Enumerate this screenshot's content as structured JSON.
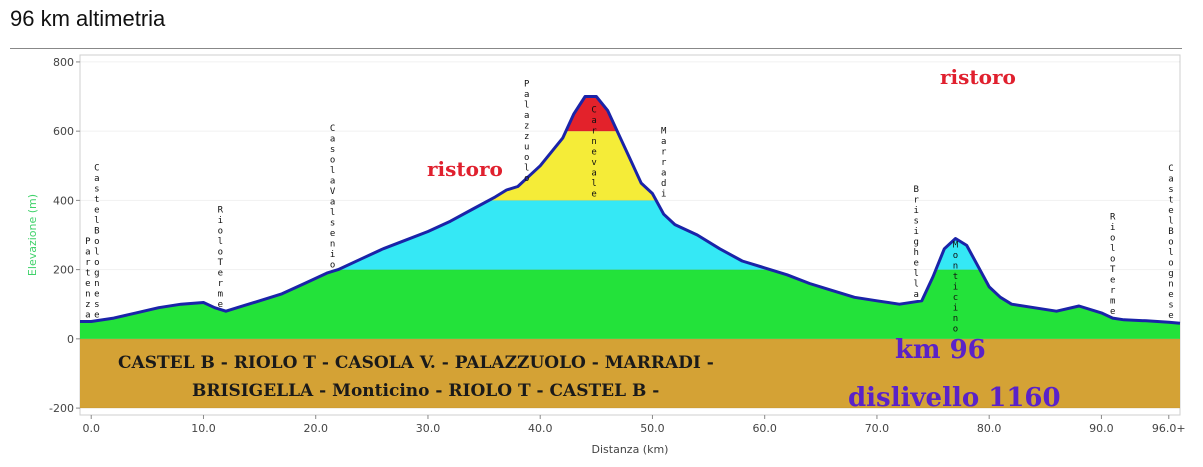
{
  "page": {
    "title": "96 km altimetria"
  },
  "chart_data": {
    "type": "area",
    "title": "",
    "xlabel": "Distanza (km)",
    "ylabel": "Elevazione (m)",
    "xlim": [
      -1,
      97
    ],
    "ylim": [
      -220,
      820
    ],
    "xticks": [
      {
        "value": 0,
        "label": "0.0"
      },
      {
        "value": 10,
        "label": "10.0"
      },
      {
        "value": 20,
        "label": "20.0"
      },
      {
        "value": 30,
        "label": "30.0"
      },
      {
        "value": 40,
        "label": "40.0"
      },
      {
        "value": 50,
        "label": "50.0"
      },
      {
        "value": 60,
        "label": "60.0"
      },
      {
        "value": 70,
        "label": "70.0"
      },
      {
        "value": 80,
        "label": "80.0"
      },
      {
        "value": 90,
        "label": "90.0"
      },
      {
        "value": 96,
        "label": "96.0+"
      }
    ],
    "yticks": [
      {
        "value": 800,
        "label": "800"
      },
      {
        "value": 600,
        "label": "600"
      },
      {
        "value": 400,
        "label": "400"
      },
      {
        "value": 200,
        "label": "200"
      },
      {
        "value": 0,
        "label": "0"
      },
      {
        "value": -200,
        "label": "-200"
      }
    ],
    "grid": true,
    "bands": [
      {
        "from": -200,
        "to": 0,
        "color": "#d4a235"
      },
      {
        "from": 0,
        "to": 200,
        "color": "#23e23a"
      },
      {
        "from": 200,
        "to": 400,
        "color": "#35e8f5"
      },
      {
        "from": 400,
        "to": 600,
        "color": "#f5ec38"
      },
      {
        "from": 600,
        "to": 820,
        "color": "#e3222b"
      }
    ],
    "line_color": "#1a23a8",
    "profile": {
      "x": [
        -1,
        0,
        2,
        4,
        6,
        8,
        10,
        11,
        12,
        13,
        15,
        17,
        19,
        21,
        22,
        24,
        26,
        28,
        30,
        32,
        34,
        36,
        37,
        38,
        40,
        42,
        43,
        44,
        45,
        46,
        47,
        48,
        49,
        50,
        51,
        52,
        54,
        56,
        58,
        60,
        62,
        64,
        66,
        68,
        70,
        72,
        74,
        75,
        76,
        77,
        78,
        79,
        80,
        81,
        82,
        84,
        86,
        88,
        90,
        91,
        92,
        94,
        96,
        97
      ],
      "y": [
        50,
        50,
        60,
        75,
        90,
        100,
        105,
        90,
        80,
        90,
        110,
        130,
        160,
        190,
        200,
        230,
        260,
        285,
        310,
        340,
        375,
        410,
        430,
        440,
        500,
        580,
        650,
        700,
        700,
        660,
        590,
        520,
        450,
        420,
        360,
        330,
        300,
        260,
        225,
        205,
        185,
        160,
        140,
        120,
        110,
        100,
        110,
        180,
        260,
        290,
        270,
        210,
        150,
        120,
        100,
        90,
        80,
        95,
        75,
        60,
        55,
        52,
        48,
        45
      ]
    },
    "towns": [
      {
        "x": -0.3,
        "elev": 50,
        "label": "Partenza"
      },
      {
        "x": 0.5,
        "elev": 50,
        "label": "Castel Bolognese"
      },
      {
        "x": 11.5,
        "elev": 80,
        "label": "Riolo Terme"
      },
      {
        "x": 21.5,
        "elev": 195,
        "label": "Casola Valsenio"
      },
      {
        "x": 38.8,
        "elev": 445,
        "label": "Palazzuolo"
      },
      {
        "x": 44.8,
        "elev": 400,
        "label": "Carnevale"
      },
      {
        "x": 51.0,
        "elev": 400,
        "label": "Marradi"
      },
      {
        "x": 73.5,
        "elev": 110,
        "label": "Brisighella"
      },
      {
        "x": 77.0,
        "elev": 10,
        "label": "Monticino"
      },
      {
        "x": 91.0,
        "elev": 60,
        "label": "Riolo Terme"
      },
      {
        "x": 96.2,
        "elev": 48,
        "label": "Castel Bolognese"
      }
    ],
    "annotations": {
      "ristoro": [
        "ristoro",
        "ristoro"
      ],
      "route_line1": "CASTEL B - RIOLO T - CASOLA V. - PALAZZUOLO - MARRADI -",
      "route_line2": "BRISIGELLA - Monticino - RIOLO T - CASTEL B -",
      "distance": "km 96",
      "climb": "dislivello 1160"
    }
  }
}
